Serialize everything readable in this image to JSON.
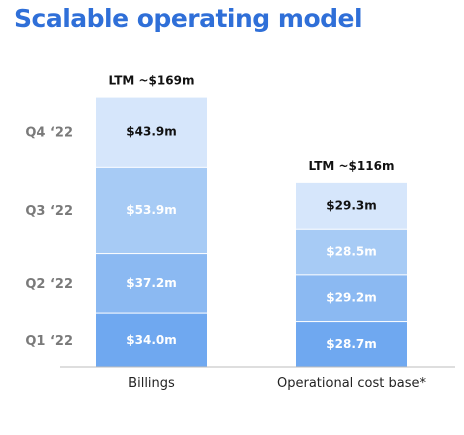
{
  "title": "Scalable operating model",
  "chart_data": {
    "type": "bar",
    "stacked": true,
    "categories": [
      "Billings",
      "Operational cost base*"
    ],
    "totals": [
      "LTM ~$169m",
      "LTM ~$116m"
    ],
    "y_categories": [
      "Q4 ‘22",
      "Q3 ‘22",
      "Q2 ‘22",
      "Q1 ‘22"
    ],
    "series": [
      {
        "name": "Q1 ‘22",
        "values": [
          34.0,
          28.7
        ],
        "labels": [
          "$34.0m",
          "$28.7m"
        ],
        "color": "#6fa8f0",
        "text_color": "#ffffff"
      },
      {
        "name": "Q2 ‘22",
        "values": [
          37.2,
          29.2
        ],
        "labels": [
          "$37.2m",
          "$29.2m"
        ],
        "color": "#8bb9f2",
        "text_color": "#ffffff"
      },
      {
        "name": "Q3 ‘22",
        "values": [
          53.9,
          28.5
        ],
        "labels": [
          "$53.9m",
          "$28.5m"
        ],
        "color": "#a7cbf5",
        "text_color": "#ffffff"
      },
      {
        "name": "Q4 ‘22",
        "values": [
          43.9,
          29.3
        ],
        "labels": [
          "$43.9m",
          "$29.3m"
        ],
        "color": "#d6e6fb",
        "text_color": "#111111"
      }
    ],
    "xlabel": "",
    "ylabel": "",
    "grid": false,
    "legend": "none"
  }
}
